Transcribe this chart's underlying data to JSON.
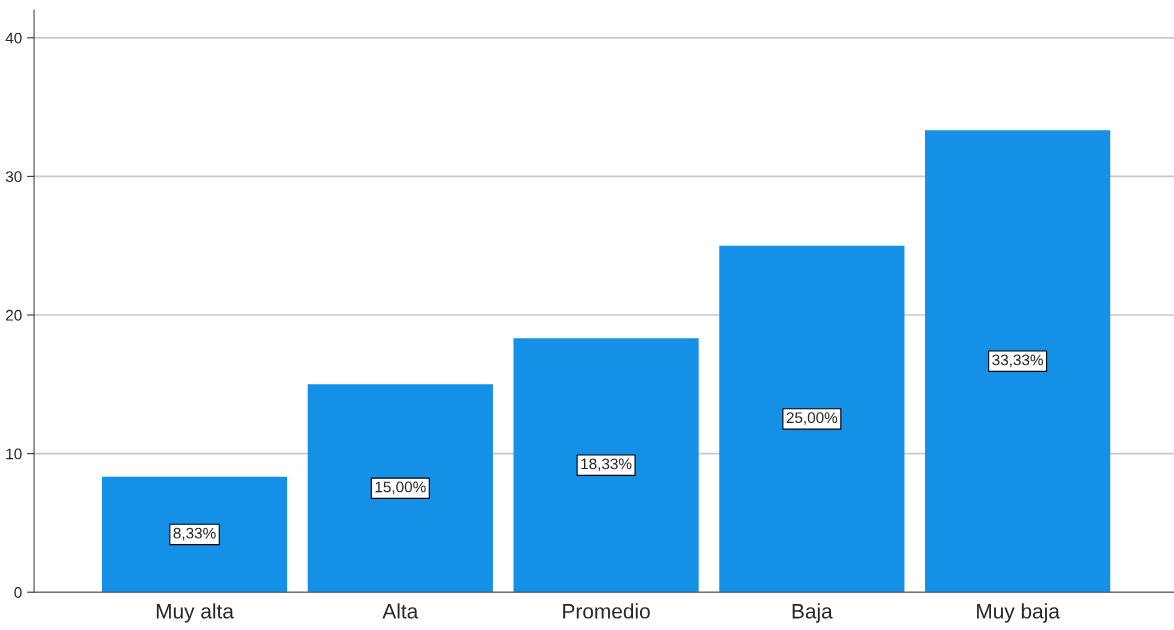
{
  "chart_data": {
    "type": "bar",
    "categories": [
      "Muy alta",
      "Alta",
      "Promedio",
      "Baja",
      "Muy baja"
    ],
    "values": [
      8.33,
      15.0,
      18.33,
      25.0,
      33.33
    ],
    "value_labels": [
      "8,33%",
      "15,00%",
      "18,33%",
      "25,00%",
      "33,33%"
    ],
    "color": "#1490e6",
    "ylim": [
      0,
      42
    ],
    "yticks": [
      0,
      10,
      20,
      30,
      40
    ],
    "grid": "y",
    "legend": false
  }
}
